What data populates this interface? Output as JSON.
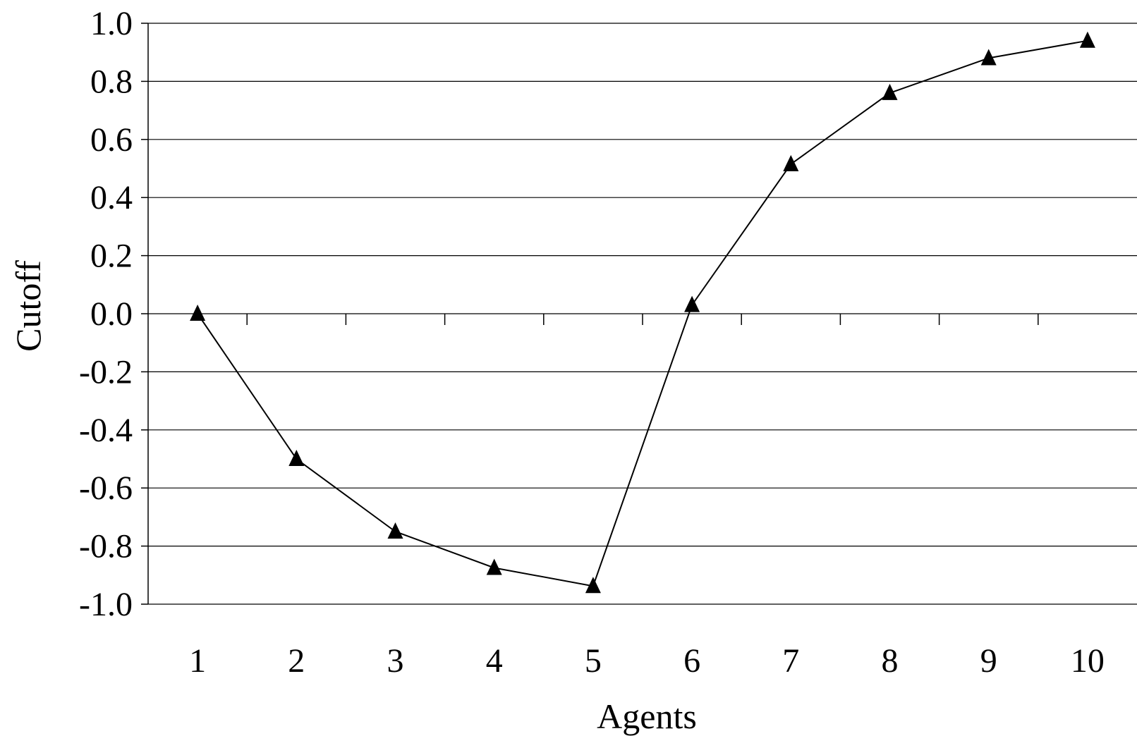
{
  "chart_data": {
    "type": "line",
    "title": "",
    "xlabel": "Agents",
    "ylabel": "Cutoff",
    "categories": [
      "1",
      "2",
      "3",
      "4",
      "5",
      "6",
      "7",
      "8",
      "9",
      "10"
    ],
    "series": [
      {
        "values": [
          0.0,
          -0.5,
          -0.75,
          -0.875,
          -0.9375,
          0.03,
          0.515,
          0.76,
          0.88,
          0.94
        ],
        "marker": "triangle",
        "color": "#000000"
      }
    ],
    "ylim": [
      -1.0,
      1.0
    ],
    "yticks": [
      "1.0",
      "0.8",
      "0.6",
      "0.4",
      "0.2",
      "0.0",
      "-0.2",
      "-0.4",
      "-0.6",
      "-0.8",
      "-1.0"
    ],
    "grid": "horizontal",
    "legend": "none"
  }
}
